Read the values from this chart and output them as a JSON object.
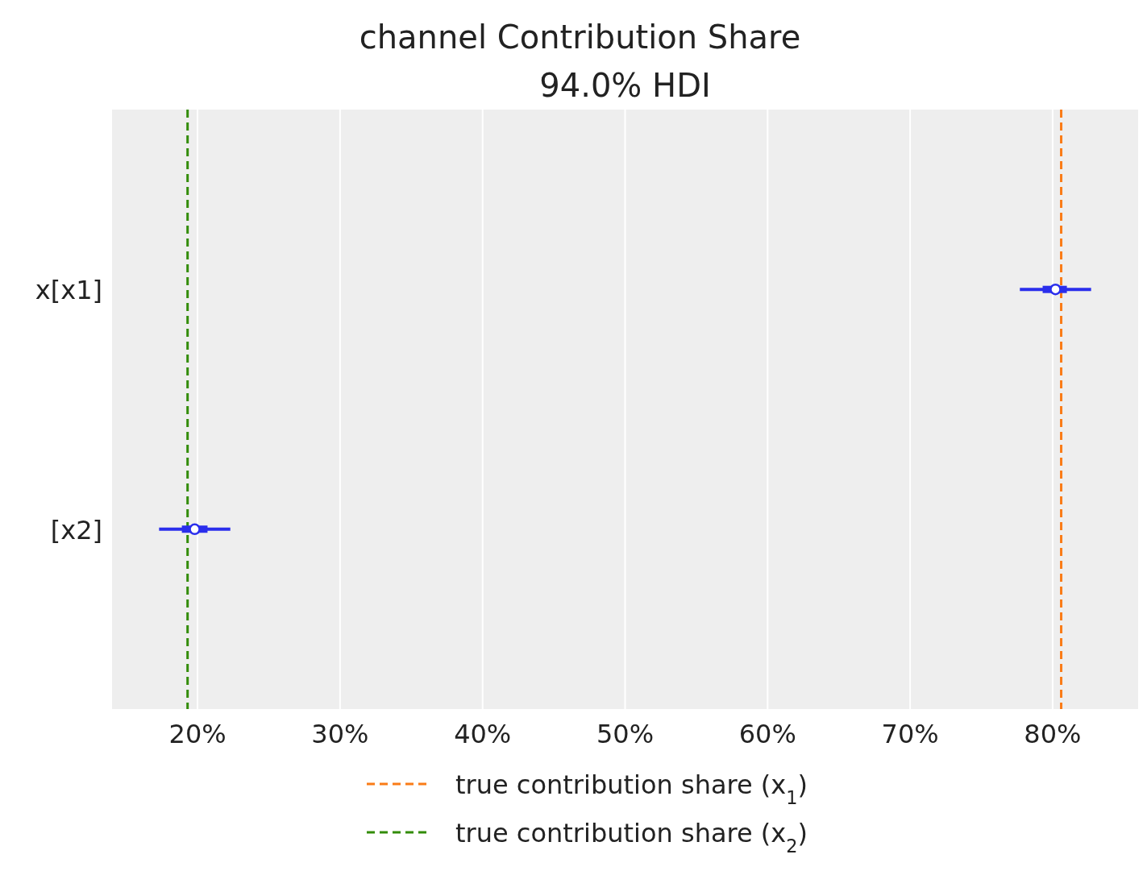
{
  "chart_data": {
    "type": "scatter",
    "orientation": "horizontal",
    "title": "channel Contribution Share",
    "subtitle": "94.0% HDI",
    "categories": [
      "x[x1]",
      "[x2]"
    ],
    "series": [
      {
        "color": "#2a2eec",
        "values": [
          80.2,
          19.8
        ],
        "errors": [
          [
            77.7,
            82.7
          ],
          [
            17.3,
            22.3
          ]
        ],
        "lower": [
          79.3,
          18.9
        ],
        "upper": [
          81.0,
          20.7
        ]
      }
    ],
    "marker": "circle",
    "xlim": [
      14.0,
      86.0
    ],
    "xticks": [
      {
        "value": 20,
        "label": "20%"
      },
      {
        "value": 30,
        "label": "30%"
      },
      {
        "value": 40,
        "label": "40%"
      },
      {
        "value": 50,
        "label": "50%"
      },
      {
        "value": 60,
        "label": "60%"
      },
      {
        "value": 70,
        "label": "70%"
      },
      {
        "value": 80,
        "label": "80%"
      }
    ],
    "grid": "x",
    "legend": "bottom",
    "ref_lines": [
      {
        "axis": "x",
        "value": 80.6,
        "label": "true contribution share (x$_{1}$)",
        "color": "#fa7c17",
        "line_style": "dashed"
      },
      {
        "axis": "x",
        "value": 19.3,
        "label": "true contribution share (x$_{2}$)",
        "color": "#328c06",
        "line_style": "dashed"
      }
    ]
  }
}
